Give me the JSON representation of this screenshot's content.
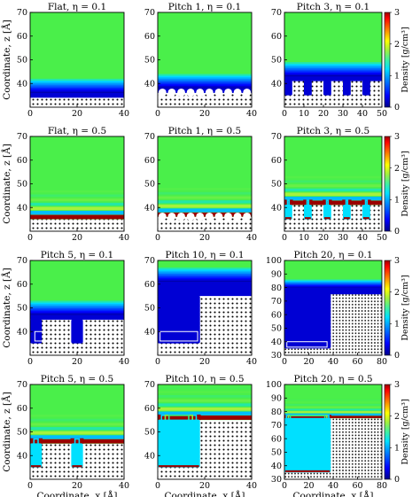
{
  "colors": {
    "high_density": "#ff1a1a",
    "bulk_density": "#4aef4a",
    "zero_density": "#0000d4",
    "wall_fill": "#ffffff",
    "wall_atoms": "#000000",
    "box_outline": "#ffffff"
  },
  "colorbar": {
    "label": "Density [g/cm³]",
    "ticks": [
      "0",
      "1",
      "2",
      "3"
    ],
    "range": [
      0,
      3
    ]
  },
  "axes": {
    "ylabel": "Coordinate, z [Å]",
    "xlabel": "Coordinate, x [Å]"
  },
  "chart_data": [
    {
      "type": "heatmap",
      "title": "Flat, η = 0.1",
      "eta": 0.1,
      "pitch": 0,
      "xlim": [
        0,
        40
      ],
      "ylim": [
        30,
        70
      ],
      "xticks": [
        "0",
        "20",
        "40"
      ],
      "yticks": [
        "40",
        "50",
        "60",
        "70"
      ],
      "wall_top": 34,
      "groove_depth": 0,
      "groove_width": 0,
      "box": null
    },
    {
      "type": "heatmap",
      "title": "Pitch 1, η = 0.1",
      "eta": 0.1,
      "pitch": 1,
      "xlim": [
        0,
        40
      ],
      "ylim": [
        30,
        70
      ],
      "xticks": [
        "0",
        "20",
        "40"
      ],
      "yticks": [
        "40",
        "50",
        "60",
        "70"
      ],
      "wall_top": 36,
      "groove_depth": 2,
      "groove_width": 0,
      "box": null
    },
    {
      "type": "heatmap",
      "title": "Pitch 3, η = 0.1",
      "eta": 0.1,
      "pitch": 3,
      "xlim": [
        0,
        50
      ],
      "ylim": [
        30,
        70
      ],
      "xticks": [
        "0",
        "10",
        "20",
        "30",
        "40",
        "50"
      ],
      "yticks": [
        "40",
        "50",
        "60",
        "70"
      ],
      "wall_top": 41,
      "groove_depth": 6,
      "groove_width": 4,
      "box": null
    },
    {
      "type": "heatmap",
      "title": "Flat, η = 0.5",
      "eta": 0.5,
      "pitch": 0,
      "xlim": [
        0,
        40
      ],
      "ylim": [
        30,
        70
      ],
      "xticks": [
        "0",
        "20",
        "40"
      ],
      "yticks": [
        "40",
        "50",
        "60",
        "70"
      ],
      "wall_top": 35,
      "groove_depth": 0,
      "groove_width": 0,
      "box": null
    },
    {
      "type": "heatmap",
      "title": "Pitch 1, η = 0.5",
      "eta": 0.5,
      "pitch": 1,
      "xlim": [
        0,
        40
      ],
      "ylim": [
        30,
        70
      ],
      "xticks": [
        "0",
        "20",
        "40"
      ],
      "yticks": [
        "40",
        "50",
        "60",
        "70"
      ],
      "wall_top": 36,
      "groove_depth": 2,
      "groove_width": 0,
      "box": null
    },
    {
      "type": "heatmap",
      "title": "Pitch 3, η = 0.5",
      "eta": 0.5,
      "pitch": 3,
      "xlim": [
        0,
        50
      ],
      "ylim": [
        30,
        70
      ],
      "xticks": [
        "0",
        "10",
        "20",
        "30",
        "40",
        "50"
      ],
      "yticks": [
        "40",
        "50",
        "60",
        "70"
      ],
      "wall_top": 41,
      "groove_depth": 6,
      "groove_width": 4,
      "box": null
    },
    {
      "type": "heatmap",
      "title": "Pitch 5, η = 0.1",
      "eta": 0.1,
      "pitch": 5,
      "xlim": [
        0,
        40
      ],
      "ylim": [
        30,
        70
      ],
      "xticks": [
        "0",
        "20",
        "40"
      ],
      "yticks": [
        "40",
        "50",
        "60",
        "70"
      ],
      "wall_top": 45,
      "groove_depth": 10,
      "groove_width": 5,
      "box": [
        2,
        36,
        4,
        4
      ]
    },
    {
      "type": "heatmap",
      "title": "Pitch 10, η = 0.1",
      "eta": 0.1,
      "pitch": 10,
      "xlim": [
        0,
        40
      ],
      "ylim": [
        30,
        70
      ],
      "xticks": [
        "0",
        "20",
        "40"
      ],
      "yticks": [
        "40",
        "50",
        "60",
        "70"
      ],
      "wall_top": 55,
      "groove_depth": 20,
      "groove_width": 18,
      "box": [
        1,
        36,
        16,
        4
      ]
    },
    {
      "type": "heatmap",
      "title": "Pitch 20, η = 0.1",
      "eta": 0.1,
      "pitch": 20,
      "xlim": [
        0,
        80
      ],
      "ylim": [
        30,
        100
      ],
      "xticks": [
        "0",
        "20",
        "40",
        "60",
        "80"
      ],
      "yticks": [
        "30",
        "40",
        "50",
        "60",
        "70",
        "80",
        "90",
        "100"
      ],
      "wall_top": 75,
      "groove_depth": 40,
      "groove_width": 38,
      "box": [
        2,
        36,
        33,
        4
      ]
    },
    {
      "type": "heatmap",
      "title": "Pitch 5, η = 0.5",
      "eta": 0.5,
      "pitch": 5,
      "xlim": [
        0,
        40
      ],
      "ylim": [
        30,
        70
      ],
      "xticks": [
        "0",
        "20",
        "40"
      ],
      "yticks": [
        "40",
        "50",
        "60",
        "70"
      ],
      "wall_top": 45,
      "groove_depth": 10,
      "groove_width": 5,
      "box": null
    },
    {
      "type": "heatmap",
      "title": "Pitch 10, η = 0.5",
      "eta": 0.5,
      "pitch": 10,
      "xlim": [
        0,
        40
      ],
      "ylim": [
        30,
        70
      ],
      "xticks": [
        "0",
        "20",
        "40"
      ],
      "yticks": [
        "40",
        "50",
        "60",
        "70"
      ],
      "wall_top": 55,
      "groove_depth": 20,
      "groove_width": 18,
      "box": null
    },
    {
      "type": "heatmap",
      "title": "Pitch 20, η = 0.5",
      "eta": 0.5,
      "pitch": 20,
      "xlim": [
        0,
        80
      ],
      "ylim": [
        30,
        100
      ],
      "xticks": [
        "0",
        "20",
        "40",
        "60",
        "80"
      ],
      "yticks": [
        "30",
        "40",
        "50",
        "60",
        "70",
        "80",
        "90",
        "100"
      ],
      "wall_top": 75,
      "groove_depth": 40,
      "groove_width": 38,
      "box": null
    }
  ]
}
